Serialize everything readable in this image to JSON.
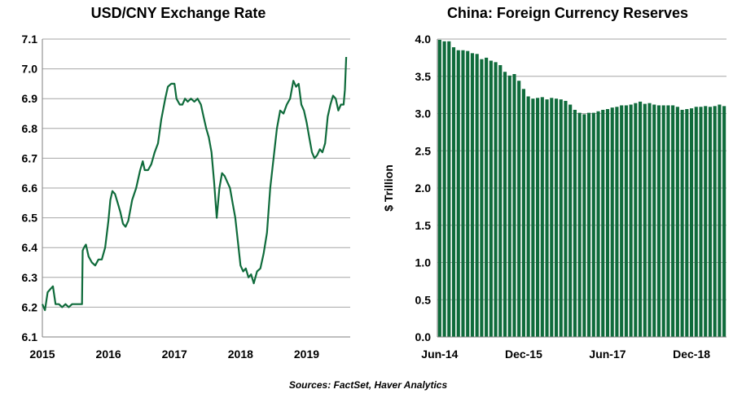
{
  "colors": {
    "series": "#0f6b3b",
    "grid": "#a6a6a6",
    "axis": "#7f7f7f",
    "text": "#000000"
  },
  "source_note": "Sources: FactSet, Haver Analytics",
  "chart_data": [
    {
      "type": "line",
      "title": "USD/CNY Exchange Rate",
      "xlabel": "",
      "ylabel": "",
      "xlim": [
        2015.0,
        2019.66
      ],
      "ylim": [
        6.1,
        7.1
      ],
      "grid": "horizontal",
      "x_ticks": [
        2015,
        2016,
        2017,
        2018,
        2019
      ],
      "x_tick_labels": [
        "2015",
        "2016",
        "2017",
        "2018",
        "2019"
      ],
      "y_ticks": [
        6.1,
        6.2,
        6.3,
        6.4,
        6.5,
        6.6,
        6.7,
        6.8,
        6.9,
        7.0,
        7.1
      ],
      "y_tick_labels": [
        "6.1",
        "6.2",
        "6.3",
        "6.4",
        "6.5",
        "6.6",
        "6.7",
        "6.8",
        "6.9",
        "7.0",
        "7.1"
      ],
      "series": [
        {
          "points": [
            [
              2015.0,
              6.21
            ],
            [
              2015.04,
              6.19
            ],
            [
              2015.08,
              6.25
            ],
            [
              2015.12,
              6.26
            ],
            [
              2015.16,
              6.27
            ],
            [
              2015.2,
              6.21
            ],
            [
              2015.25,
              6.21
            ],
            [
              2015.3,
              6.2
            ],
            [
              2015.35,
              6.21
            ],
            [
              2015.4,
              6.2
            ],
            [
              2015.45,
              6.21
            ],
            [
              2015.5,
              6.21
            ],
            [
              2015.55,
              6.21
            ],
            [
              2015.6,
              6.21
            ],
            [
              2015.61,
              6.39
            ],
            [
              2015.63,
              6.4
            ],
            [
              2015.66,
              6.41
            ],
            [
              2015.7,
              6.37
            ],
            [
              2015.75,
              6.35
            ],
            [
              2015.8,
              6.34
            ],
            [
              2015.85,
              6.36
            ],
            [
              2015.9,
              6.36
            ],
            [
              2015.95,
              6.4
            ],
            [
              2016.0,
              6.49
            ],
            [
              2016.03,
              6.56
            ],
            [
              2016.06,
              6.59
            ],
            [
              2016.1,
              6.58
            ],
            [
              2016.14,
              6.55
            ],
            [
              2016.18,
              6.52
            ],
            [
              2016.22,
              6.48
            ],
            [
              2016.26,
              6.47
            ],
            [
              2016.3,
              6.49
            ],
            [
              2016.36,
              6.56
            ],
            [
              2016.42,
              6.6
            ],
            [
              2016.48,
              6.66
            ],
            [
              2016.52,
              6.69
            ],
            [
              2016.55,
              6.66
            ],
            [
              2016.6,
              6.66
            ],
            [
              2016.65,
              6.68
            ],
            [
              2016.7,
              6.72
            ],
            [
              2016.75,
              6.75
            ],
            [
              2016.8,
              6.83
            ],
            [
              2016.86,
              6.9
            ],
            [
              2016.9,
              6.94
            ],
            [
              2016.95,
              6.95
            ],
            [
              2017.0,
              6.95
            ],
            [
              2017.03,
              6.9
            ],
            [
              2017.08,
              6.88
            ],
            [
              2017.12,
              6.88
            ],
            [
              2017.16,
              6.9
            ],
            [
              2017.2,
              6.89
            ],
            [
              2017.25,
              6.9
            ],
            [
              2017.3,
              6.89
            ],
            [
              2017.35,
              6.9
            ],
            [
              2017.4,
              6.88
            ],
            [
              2017.44,
              6.84
            ],
            [
              2017.48,
              6.8
            ],
            [
              2017.52,
              6.77
            ],
            [
              2017.56,
              6.72
            ],
            [
              2017.6,
              6.62
            ],
            [
              2017.64,
              6.5
            ],
            [
              2017.68,
              6.6
            ],
            [
              2017.72,
              6.65
            ],
            [
              2017.76,
              6.64
            ],
            [
              2017.8,
              6.62
            ],
            [
              2017.84,
              6.6
            ],
            [
              2017.88,
              6.55
            ],
            [
              2017.92,
              6.5
            ],
            [
              2017.96,
              6.42
            ],
            [
              2018.0,
              6.34
            ],
            [
              2018.04,
              6.32
            ],
            [
              2018.08,
              6.33
            ],
            [
              2018.12,
              6.3
            ],
            [
              2018.16,
              6.31
            ],
            [
              2018.2,
              6.28
            ],
            [
              2018.25,
              6.32
            ],
            [
              2018.3,
              6.33
            ],
            [
              2018.35,
              6.38
            ],
            [
              2018.4,
              6.45
            ],
            [
              2018.45,
              6.6
            ],
            [
              2018.5,
              6.7
            ],
            [
              2018.55,
              6.8
            ],
            [
              2018.6,
              6.86
            ],
            [
              2018.65,
              6.85
            ],
            [
              2018.7,
              6.88
            ],
            [
              2018.75,
              6.9
            ],
            [
              2018.8,
              6.96
            ],
            [
              2018.84,
              6.94
            ],
            [
              2018.88,
              6.95
            ],
            [
              2018.92,
              6.88
            ],
            [
              2018.96,
              6.86
            ],
            [
              2019.0,
              6.82
            ],
            [
              2019.04,
              6.77
            ],
            [
              2019.08,
              6.72
            ],
            [
              2019.12,
              6.7
            ],
            [
              2019.16,
              6.71
            ],
            [
              2019.2,
              6.73
            ],
            [
              2019.24,
              6.72
            ],
            [
              2019.28,
              6.75
            ],
            [
              2019.32,
              6.84
            ],
            [
              2019.36,
              6.88
            ],
            [
              2019.4,
              6.91
            ],
            [
              2019.44,
              6.9
            ],
            [
              2019.48,
              6.86
            ],
            [
              2019.52,
              6.88
            ],
            [
              2019.56,
              6.88
            ],
            [
              2019.58,
              6.93
            ],
            [
              2019.6,
              7.04
            ]
          ]
        }
      ]
    },
    {
      "type": "bar",
      "title": "China: Foreign Currency Reserves",
      "xlabel": "",
      "ylabel": "$ Trillion",
      "ylim": [
        0.0,
        4.0
      ],
      "grid": "horizontal",
      "y_ticks": [
        0.0,
        0.5,
        1.0,
        1.5,
        2.0,
        2.5,
        3.0,
        3.5,
        4.0
      ],
      "y_tick_labels": [
        "0.0",
        "0.5",
        "1.0",
        "1.5",
        "2.0",
        "2.5",
        "3.0",
        "3.5",
        "4.0"
      ],
      "x_tick_labels": [
        "Jun-14",
        "Dec-15",
        "Jun-17",
        "Dec-18"
      ],
      "x_tick_indices": [
        0,
        18,
        36,
        54
      ],
      "categories": [
        "Jun-14",
        "Jul-14",
        "Aug-14",
        "Sep-14",
        "Oct-14",
        "Nov-14",
        "Dec-14",
        "Jan-15",
        "Feb-15",
        "Mar-15",
        "Apr-15",
        "May-15",
        "Jun-15",
        "Jul-15",
        "Aug-15",
        "Sep-15",
        "Oct-15",
        "Nov-15",
        "Dec-15",
        "Jan-16",
        "Feb-16",
        "Mar-16",
        "Apr-16",
        "May-16",
        "Jun-16",
        "Jul-16",
        "Aug-16",
        "Sep-16",
        "Oct-16",
        "Nov-16",
        "Dec-16",
        "Jan-17",
        "Feb-17",
        "Mar-17",
        "Apr-17",
        "May-17",
        "Jun-17",
        "Jul-17",
        "Aug-17",
        "Sep-17",
        "Oct-17",
        "Nov-17",
        "Dec-17",
        "Jan-18",
        "Feb-18",
        "Mar-18",
        "Apr-18",
        "May-18",
        "Jun-18",
        "Jul-18",
        "Aug-18",
        "Sep-18",
        "Oct-18",
        "Nov-18",
        "Dec-18",
        "Jan-19",
        "Feb-19",
        "Mar-19",
        "Apr-19",
        "May-19",
        "Jun-19",
        "Jul-19"
      ],
      "values": [
        3.99,
        3.97,
        3.97,
        3.89,
        3.85,
        3.85,
        3.84,
        3.81,
        3.8,
        3.73,
        3.75,
        3.71,
        3.69,
        3.65,
        3.56,
        3.51,
        3.53,
        3.44,
        3.33,
        3.23,
        3.2,
        3.21,
        3.22,
        3.19,
        3.21,
        3.2,
        3.19,
        3.17,
        3.12,
        3.05,
        3.01,
        2.99,
        3.01,
        3.01,
        3.03,
        3.05,
        3.06,
        3.08,
        3.09,
        3.11,
        3.11,
        3.12,
        3.14,
        3.16,
        3.13,
        3.14,
        3.12,
        3.11,
        3.11,
        3.11,
        3.11,
        3.09,
        3.05,
        3.06,
        3.07,
        3.09,
        3.09,
        3.1,
        3.09,
        3.1,
        3.12,
        3.1
      ]
    }
  ]
}
